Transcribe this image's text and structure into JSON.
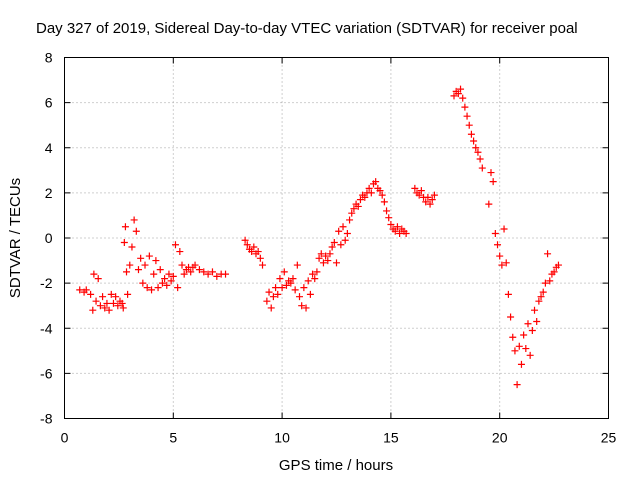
{
  "chart_data": {
    "type": "scatter",
    "title": "Day 327 of 2019, Sidereal Day-to-day VTEC variation (SDTVAR) for receiver poal",
    "xlabel": "GPS time / hours",
    "ylabel": "SDTVAR / TECUs",
    "xlim": [
      0,
      25
    ],
    "ylim": [
      -8,
      8
    ],
    "xticks": [
      "0",
      "5",
      "10",
      "15",
      "20",
      "25"
    ],
    "yticks": [
      "-8",
      "-6",
      "-4",
      "-2",
      "0",
      "2",
      "4",
      "6",
      "8"
    ],
    "grid": true,
    "marker": "plus",
    "color": "#ff0000",
    "series": [
      {
        "name": "SDTVAR",
        "x": [
          0.7,
          0.9,
          1.0,
          1.2,
          1.3,
          1.35,
          1.45,
          1.55,
          1.65,
          1.75,
          1.85,
          1.95,
          2.05,
          2.15,
          2.25,
          2.35,
          2.45,
          2.55,
          2.65,
          2.7,
          2.75,
          2.8,
          2.85,
          2.9,
          3.0,
          3.1,
          3.2,
          3.3,
          3.4,
          3.5,
          3.6,
          3.7,
          3.8,
          3.9,
          4.0,
          4.1,
          4.2,
          4.3,
          4.4,
          4.5,
          4.6,
          4.7,
          4.8,
          4.9,
          5.0,
          5.1,
          5.2,
          5.3,
          5.4,
          5.5,
          5.6,
          5.7,
          5.8,
          5.9,
          6.0,
          6.2,
          6.4,
          6.6,
          6.8,
          7.0,
          7.2,
          7.4,
          8.3,
          8.4,
          8.5,
          8.6,
          8.7,
          8.8,
          8.9,
          9.0,
          9.1,
          9.3,
          9.4,
          9.5,
          9.6,
          9.7,
          9.8,
          9.9,
          10.0,
          10.1,
          10.2,
          10.3,
          10.4,
          10.5,
          10.6,
          10.7,
          10.8,
          10.9,
          11.0,
          11.1,
          11.2,
          11.3,
          11.4,
          11.5,
          11.6,
          11.7,
          11.8,
          11.9,
          12.0,
          12.1,
          12.2,
          12.3,
          12.4,
          12.5,
          12.6,
          12.7,
          12.8,
          12.9,
          13.0,
          13.1,
          13.2,
          13.3,
          13.4,
          13.5,
          13.6,
          13.7,
          13.8,
          13.9,
          14.0,
          14.1,
          14.2,
          14.3,
          14.4,
          14.5,
          14.6,
          14.7,
          14.8,
          14.9,
          15.0,
          15.1,
          15.2,
          15.3,
          15.4,
          15.5,
          15.6,
          15.7,
          16.1,
          16.2,
          16.3,
          16.4,
          16.5,
          16.6,
          16.7,
          16.8,
          16.9,
          17.0,
          17.9,
          18.0,
          18.1,
          18.2,
          18.3,
          18.4,
          18.5,
          18.6,
          18.7,
          18.8,
          18.9,
          19.0,
          19.1,
          19.2,
          19.5,
          19.6,
          19.7,
          19.8,
          19.9,
          20.0,
          20.1,
          20.2,
          20.3,
          20.4,
          20.5,
          20.6,
          20.7,
          20.8,
          20.9,
          21.0,
          21.1,
          21.2,
          21.3,
          21.4,
          21.5,
          21.6,
          21.7,
          21.8,
          21.9,
          22.0,
          22.1,
          22.2,
          22.3,
          22.4,
          22.5,
          22.6,
          22.7
        ],
        "y": [
          -2.3,
          -2.4,
          -2.3,
          -2.5,
          -3.2,
          -1.6,
          -2.8,
          -1.8,
          -3.0,
          -2.6,
          -3.1,
          -2.9,
          -3.2,
          -2.5,
          -2.9,
          -2.6,
          -3.0,
          -2.8,
          -2.9,
          -3.1,
          -0.2,
          0.5,
          -1.5,
          -2.5,
          -1.2,
          -0.4,
          0.8,
          0.3,
          -1.4,
          -0.9,
          -2.0,
          -1.2,
          -2.2,
          -0.8,
          -2.3,
          -1.6,
          -1.0,
          -2.2,
          -1.4,
          -2.0,
          -1.8,
          -2.1,
          -1.6,
          -1.9,
          -1.7,
          -0.3,
          -2.2,
          -0.6,
          -1.2,
          -1.6,
          -1.4,
          -1.3,
          -1.5,
          -1.3,
          -1.2,
          -1.4,
          -1.5,
          -1.6,
          -1.5,
          -1.7,
          -1.6,
          -1.6,
          -0.1,
          -0.3,
          -0.5,
          -0.6,
          -0.4,
          -0.7,
          -0.6,
          -0.9,
          -1.2,
          -2.8,
          -2.4,
          -3.1,
          -2.6,
          -2.2,
          -2.5,
          -1.8,
          -2.2,
          -1.5,
          -2.1,
          -1.9,
          -2.0,
          -1.8,
          -2.3,
          -1.2,
          -2.6,
          -3.0,
          -2.2,
          -3.1,
          -1.9,
          -2.5,
          -1.6,
          -1.8,
          -1.5,
          -0.9,
          -0.7,
          -1.1,
          -0.8,
          -1.0,
          -0.7,
          -0.4,
          -0.2,
          -1.1,
          0.3,
          -0.3,
          0.5,
          -0.1,
          0.2,
          0.8,
          1.1,
          1.3,
          1.5,
          1.4,
          1.7,
          1.9,
          1.8,
          2.0,
          2.2,
          2.0,
          2.4,
          2.5,
          2.2,
          2.1,
          1.9,
          1.6,
          1.2,
          0.9,
          0.6,
          0.4,
          0.3,
          0.5,
          0.2,
          0.4,
          0.3,
          0.2,
          2.2,
          2.0,
          1.9,
          2.1,
          1.8,
          1.6,
          1.8,
          1.5,
          1.7,
          1.9,
          6.3,
          6.5,
          6.4,
          6.6,
          6.2,
          5.8,
          5.4,
          5.0,
          4.6,
          4.3,
          4.0,
          3.8,
          3.5,
          3.1,
          1.5,
          2.9,
          2.5,
          0.2,
          -0.3,
          -0.8,
          -1.2,
          0.4,
          -1.1,
          -2.5,
          -3.5,
          -4.4,
          -5.0,
          -6.5,
          -4.8,
          -5.6,
          -4.3,
          -4.9,
          -3.8,
          -5.2,
          -4.1,
          -3.2,
          -3.7,
          -2.8,
          -2.6,
          -2.4,
          -2.0,
          -0.7,
          -1.9,
          -1.6,
          -1.5,
          -1.3,
          -1.2
        ]
      }
    ]
  }
}
